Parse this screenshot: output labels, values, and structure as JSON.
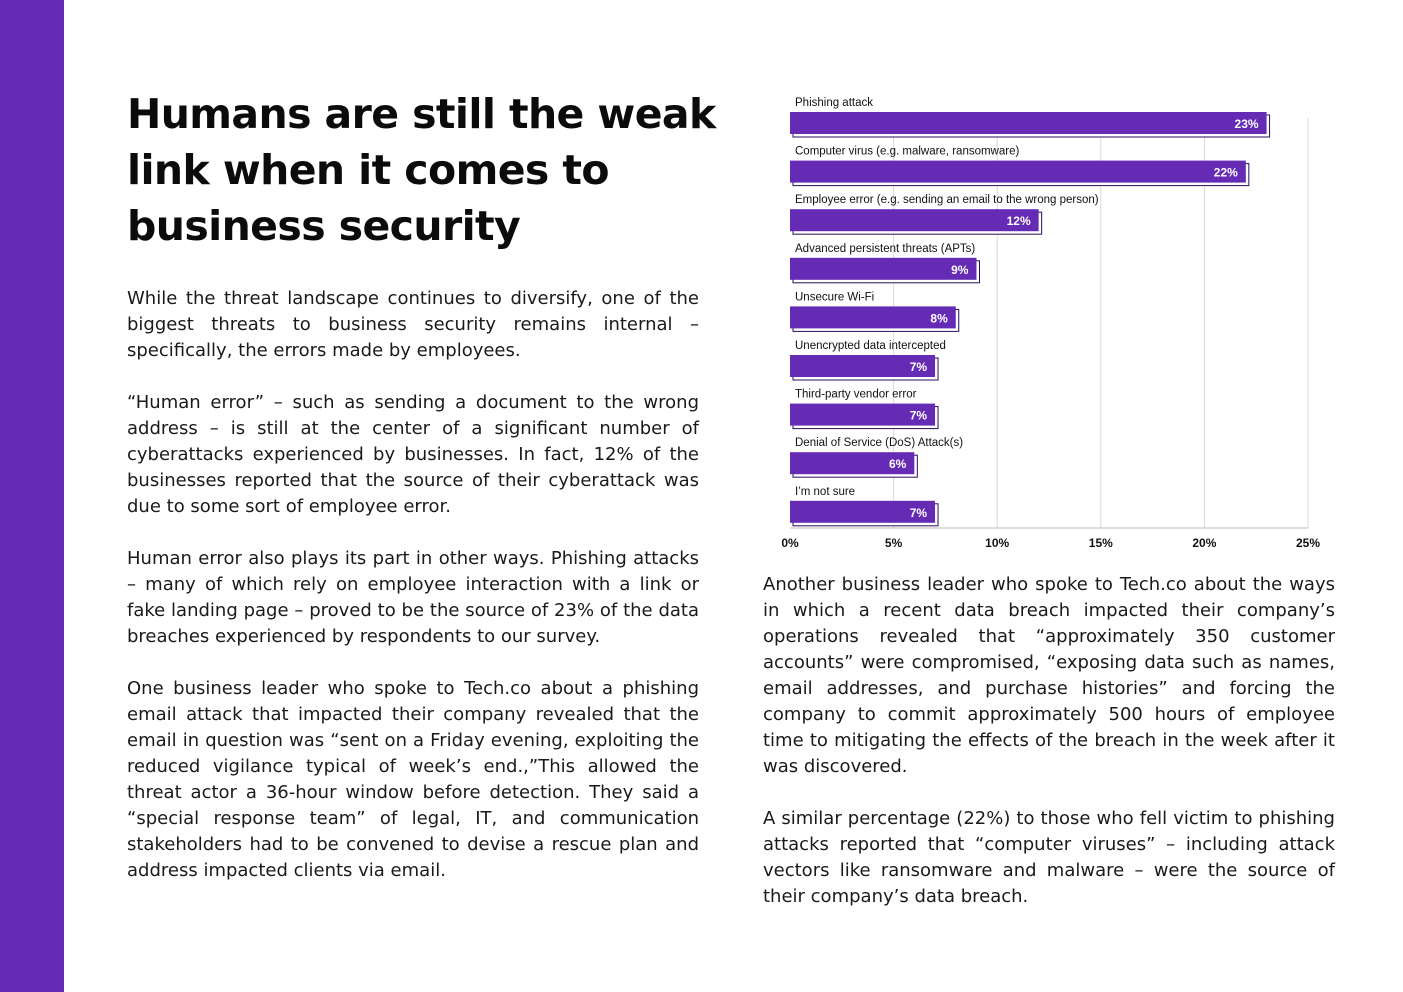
{
  "page": {
    "title": "Humans are still the weak link when it comes to business security",
    "left_paragraphs": [
      "While the threat landscape continues to diversify, one of the biggest threats to business security remains internal – specifically, the errors made by employees.",
      "“Human error” – such as sending a document to the wrong address – is still at the center of a significant number of cyberattacks experienced by businesses. In fact, 12% of the businesses reported that the source of their cyberattack was due to some sort of employee error.",
      "Human error also plays its part in other ways. Phishing attacks – many of which rely on employee interaction with a link or fake landing page – proved to be the source of 23% of the data breaches experienced by respondents to our survey.",
      "One business leader who spoke to Tech.co about a phishing email attack that impacted their company revealed that the email in question was “sent on a Friday evening, exploiting the reduced vigilance typical of week’s end.,”This allowed the threat actor a 36-hour window before detection. They said a “special response team” of legal, IT, and communication stakeholders had to be convened to devise a rescue plan and address impacted clients via email."
    ],
    "right_paragraphs": [
      "Another business leader who spoke to Tech.co about the ways in which a recent data breach impacted their company’s operations revealed that “approximately 350 customer accounts” were compromised, “exposing data such as names, email addresses, and purchase histories” and forcing the company to commit approximately 500 hours of employee time to mitigating the effects of the breach in the week after it was discovered.",
      "A similar percentage (22%) to those who fell victim to phishing attacks reported that “computer viruses” – including attack vectors like ransomware and malware – were the source of their company’s data breach."
    ]
  },
  "colors": {
    "sidebar": "#652bb5",
    "bar_fill": "#652bb5",
    "bar_shadow": "#2a0d5c",
    "grid": "#d9d9d9"
  },
  "chart_data": {
    "type": "bar",
    "orientation": "horizontal",
    "title": "",
    "categories": [
      "Phishing attack",
      "Computer virus (e.g. malware, ransomware)",
      "Employee error (e.g. sending an email to the wrong person)",
      "Advanced persistent threats (APTs)",
      "Unsecure Wi-Fi",
      "Unencrypted data intercepted",
      "Third-party vendor error",
      "Denial of Service (DoS) Attack(s)",
      "I’m not sure"
    ],
    "values": [
      23,
      22,
      12,
      9,
      8,
      7,
      7,
      6,
      7
    ],
    "value_labels": [
      "23%",
      "22%",
      "12%",
      "9%",
      "8%",
      "7%",
      "7%",
      "6%",
      "7%"
    ],
    "xlim": [
      0,
      25
    ],
    "x_ticks": [
      0,
      5,
      10,
      15,
      20,
      25
    ],
    "x_tick_labels": [
      "0%",
      "5%",
      "10%",
      "15%",
      "20%",
      "25%"
    ],
    "xlabel": "",
    "ylabel": "",
    "grid": true,
    "legend": "none"
  }
}
